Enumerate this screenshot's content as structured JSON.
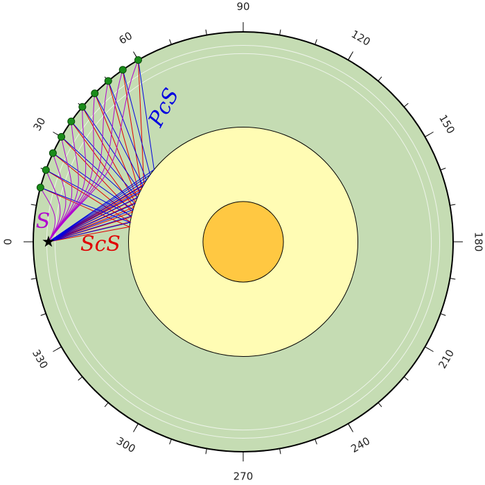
{
  "chart_data": {
    "type": "polar-raypath",
    "theta_ticks": [
      0,
      30,
      60,
      90,
      120,
      150,
      180,
      210,
      240,
      270,
      300,
      330
    ],
    "theta_minor_step": 10,
    "earth_radius": 6371,
    "discontinuities": [
      5961,
      5711
    ],
    "layers": [
      {
        "radius": 6371,
        "color": "#c5dcb3"
      },
      {
        "radius": 3480,
        "color": "#fffcb4"
      },
      {
        "radius": 1221,
        "color": "#ffc842"
      }
    ],
    "source": {
      "distance": 0,
      "depth": 462
    },
    "stations": [
      15,
      20,
      25,
      30,
      35,
      40,
      45,
      50,
      55,
      60
    ],
    "station_color": "#1a8c1a",
    "phases": [
      {
        "name": "S",
        "color": "#b000d0"
      },
      {
        "name": "ScS",
        "color": "#e00000"
      },
      {
        "name": "PcS",
        "color": "#0000e0"
      }
    ]
  }
}
